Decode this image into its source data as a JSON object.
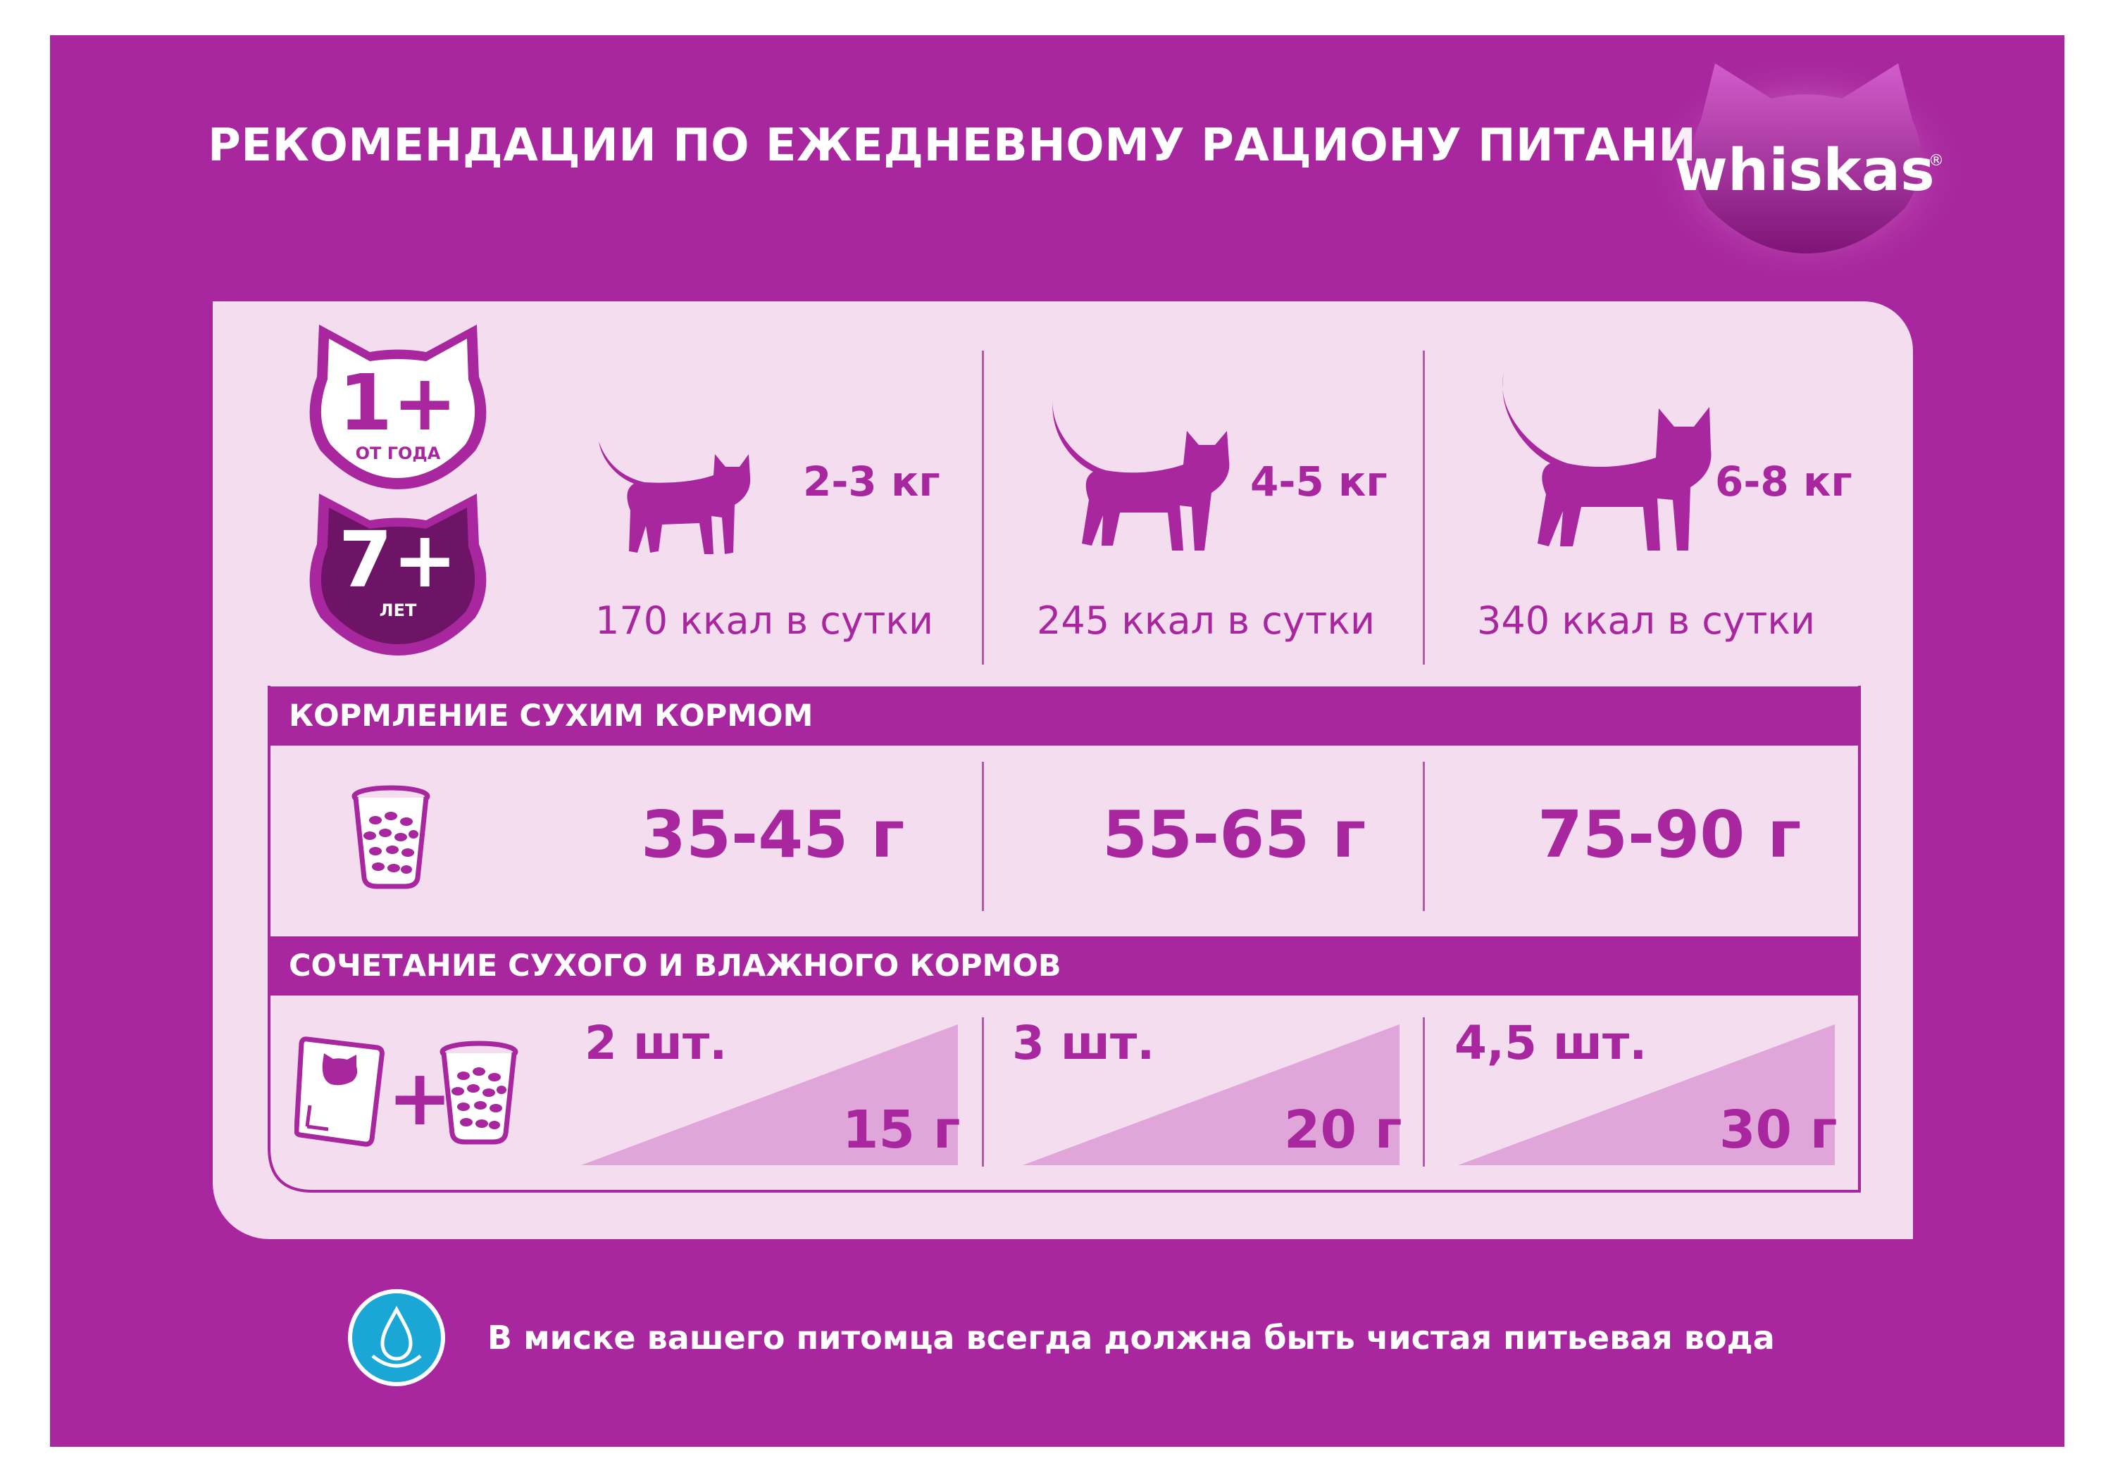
{
  "header": {
    "title": "РЕКОМЕНДАЦИИ ПО ЕЖЕДНЕВНОМУ РАЦИОНУ ПИТАНИЯ",
    "brand": "whiskas",
    "brand_mark": "®"
  },
  "age_badges": [
    {
      "number": "1+",
      "caption": "ОТ ГОДА"
    },
    {
      "number": "7+",
      "caption": "ЛЕТ"
    }
  ],
  "weights": [
    {
      "weight": "2-3 кг",
      "kcal": "170 ккал в сутки",
      "icon": "small-cat-icon"
    },
    {
      "weight": "4-5 кг",
      "kcal": "245 ккал в сутки",
      "icon": "medium-cat-icon"
    },
    {
      "weight": "6-8 кг",
      "kcal": "340 ккал в сутки",
      "icon": "large-cat-icon"
    }
  ],
  "dry": {
    "label": "КОРМЛЕНИЕ СУХИМ КОРМОМ",
    "values": [
      "35-45 г",
      "55-65 г",
      "75-90 г"
    ],
    "icon": "dry-food-cup-icon"
  },
  "mixed": {
    "label": "СОЧЕТАНИЕ СУХОГО И ВЛАЖНОГО КОРМОВ",
    "plus": "+",
    "icons": [
      "wet-food-pouch-icon",
      "dry-food-cup-icon"
    ],
    "items": [
      {
        "pouches": "2 шт.",
        "grams": "15 г"
      },
      {
        "pouches": "3 шт.",
        "grams": "20 г"
      },
      {
        "pouches": "4,5 шт.",
        "grams": "30 г"
      }
    ]
  },
  "footer": {
    "note": "В миске вашего питомца всегда должна быть чистая питьевая вода",
    "icon": "water-drop-icon"
  },
  "colors": {
    "brand_purple": "#a8279e",
    "dark_purple": "#6d1466",
    "panel_pink": "#f5ddf0",
    "triangle_pink": "#e0a6da",
    "water_blue": "#1ba7d6"
  }
}
